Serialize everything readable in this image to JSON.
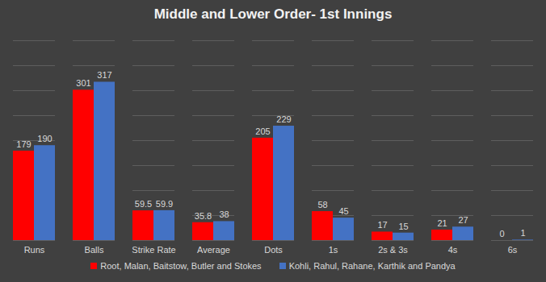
{
  "chart_data": {
    "type": "bar",
    "title": "Middle and Lower Order- 1st Innings",
    "categories": [
      "Runs",
      "Balls",
      "Strike Rate",
      "Average",
      "Dots",
      "1s",
      "2s & 3s",
      "4s",
      "6s"
    ],
    "series": [
      {
        "name": "Root, Malan, Baitstow, Butler and Stokes",
        "color": "#ff0000",
        "values": [
          179,
          301,
          59.5,
          35.8,
          205,
          58,
          17,
          21,
          0
        ]
      },
      {
        "name": "Kohli, Rahul, Rahane, Karthik and Pandya",
        "color": "#4472c4",
        "values": [
          190,
          317,
          59.9,
          38,
          229,
          45,
          15,
          27,
          1
        ]
      }
    ],
    "ylim": [
      0,
      400
    ],
    "yticks": [
      0,
      50,
      100,
      150,
      200,
      250,
      300,
      350,
      400
    ],
    "grid": true,
    "data_labels": true,
    "tick_labels": "x",
    "legend": "bottom"
  }
}
